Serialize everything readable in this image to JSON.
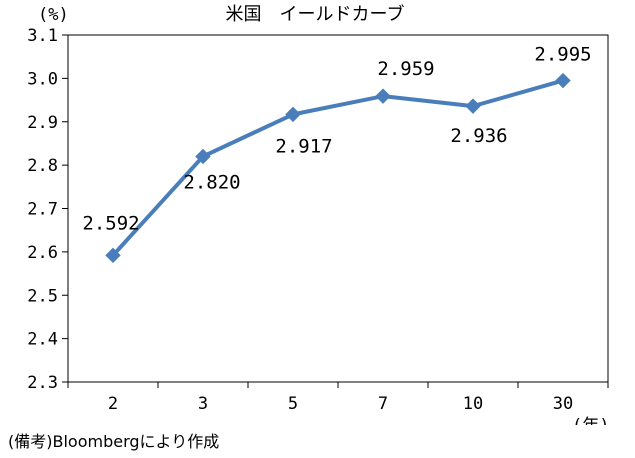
{
  "chart_data": {
    "type": "line",
    "title": "米国　イールドカーブ",
    "ylabel": "(%)",
    "xlabel": "(年)",
    "categories": [
      "2",
      "3",
      "5",
      "7",
      "10",
      "30"
    ],
    "series": [
      {
        "values": [
          2.592,
          2.82,
          2.917,
          2.959,
          2.936,
          2.995
        ],
        "labels": [
          "2.592",
          "2.820",
          "2.917",
          "2.959",
          "2.936",
          "2.995"
        ]
      }
    ],
    "ylim": [
      2.3,
      3.1
    ],
    "yticks": [
      "2.3",
      "2.4",
      "2.5",
      "2.6",
      "2.7",
      "2.8",
      "2.9",
      "3.0",
      "3.1"
    ],
    "grid": false,
    "legend": "none",
    "line_color": "#4a7ebb"
  },
  "source_note": "(備考)Bloombergにより作成"
}
